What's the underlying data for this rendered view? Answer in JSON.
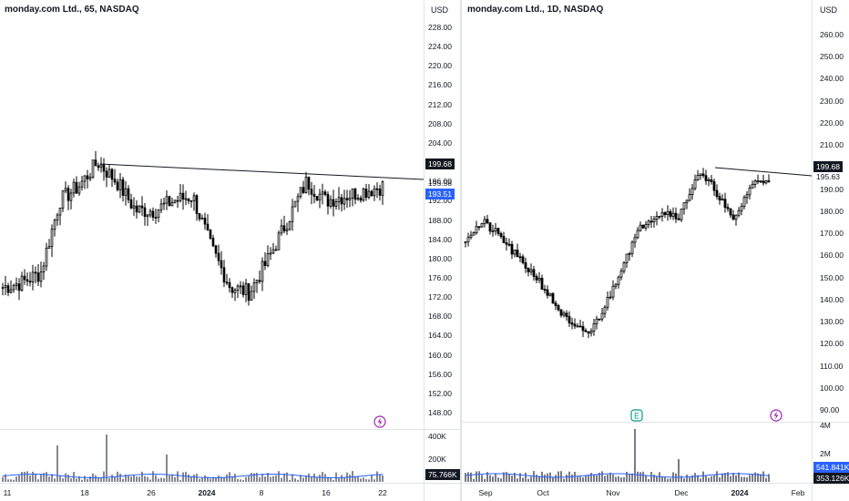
{
  "colors": {
    "bull": "#ffffff",
    "bear": "#000000",
    "outline": "#000000",
    "volume": "#787b86",
    "ma": "#2962ff",
    "badge_dark": "#131722",
    "badge_blue": "#2962ff",
    "divider": "#e0e3eb",
    "event_green": "#089981",
    "event_purple": "#9c27b0"
  },
  "icons": {
    "earnings": "earnings-badge-icon",
    "lightning": "lightning-icon"
  },
  "left": {
    "title": "monday.com Ltd., 65, NASDAQ",
    "currency": "USD",
    "price_ticks": [
      "228.00",
      "224.00",
      "220.00",
      "216.00",
      "212.00",
      "208.00",
      "204.00",
      "200.00",
      "196.00",
      "192.00",
      "188.00",
      "184.00",
      "180.00",
      "176.00",
      "172.00",
      "168.00",
      "164.00",
      "160.00",
      "156.00",
      "152.00",
      "148.00"
    ],
    "price_tick_values": [
      228,
      224,
      220,
      216,
      212,
      208,
      204,
      200,
      196,
      192,
      188,
      184,
      180,
      176,
      172,
      168,
      164,
      160,
      156,
      152,
      148
    ],
    "badges": {
      "resistance": "199.68",
      "last": "193.51",
      "level": "195.58"
    },
    "volume_ticks": [
      "400K",
      "200K"
    ],
    "volume_badges": {
      "top": "75.766K"
    },
    "date_labels": [
      "11",
      "18",
      "26",
      "2024",
      "8",
      "16",
      "22"
    ],
    "bold_dates": [
      "2024"
    ],
    "chart_data": {
      "type": "candlestick",
      "ylim": [
        146,
        230
      ],
      "resistance_line": {
        "start_price": 199.68,
        "end_price": 195.58
      },
      "last_price": 193.51
    }
  },
  "right": {
    "title": "monday.com Ltd., 1D, NASDAQ",
    "currency": "USD",
    "price_ticks": [
      "260.00",
      "250.00",
      "240.00",
      "230.00",
      "220.00",
      "210.00",
      "190.00",
      "180.00",
      "170.00",
      "160.00",
      "150.00",
      "140.00",
      "130.00",
      "120.00",
      "110.00",
      "100.00",
      "90.00"
    ],
    "price_tick_values": [
      260,
      250,
      240,
      230,
      220,
      210,
      190,
      180,
      170,
      160,
      150,
      140,
      130,
      120,
      110,
      100,
      90
    ],
    "badges": {
      "resistance": "199.68",
      "level": "195.63"
    },
    "volume_ticks": [
      "4M",
      "2M"
    ],
    "volume_badges": {
      "top": "541.841K",
      "bottom": "353.126K"
    },
    "date_labels": [
      "Sep",
      "Oct",
      "Nov",
      "Dec",
      "2024",
      "Feb"
    ],
    "bold_dates": [
      "2024"
    ],
    "chart_data": {
      "type": "candlestick",
      "ylim": [
        85,
        265
      ],
      "resistance_line": {
        "start_price": 199.68,
        "end_price": 195.63
      }
    }
  }
}
